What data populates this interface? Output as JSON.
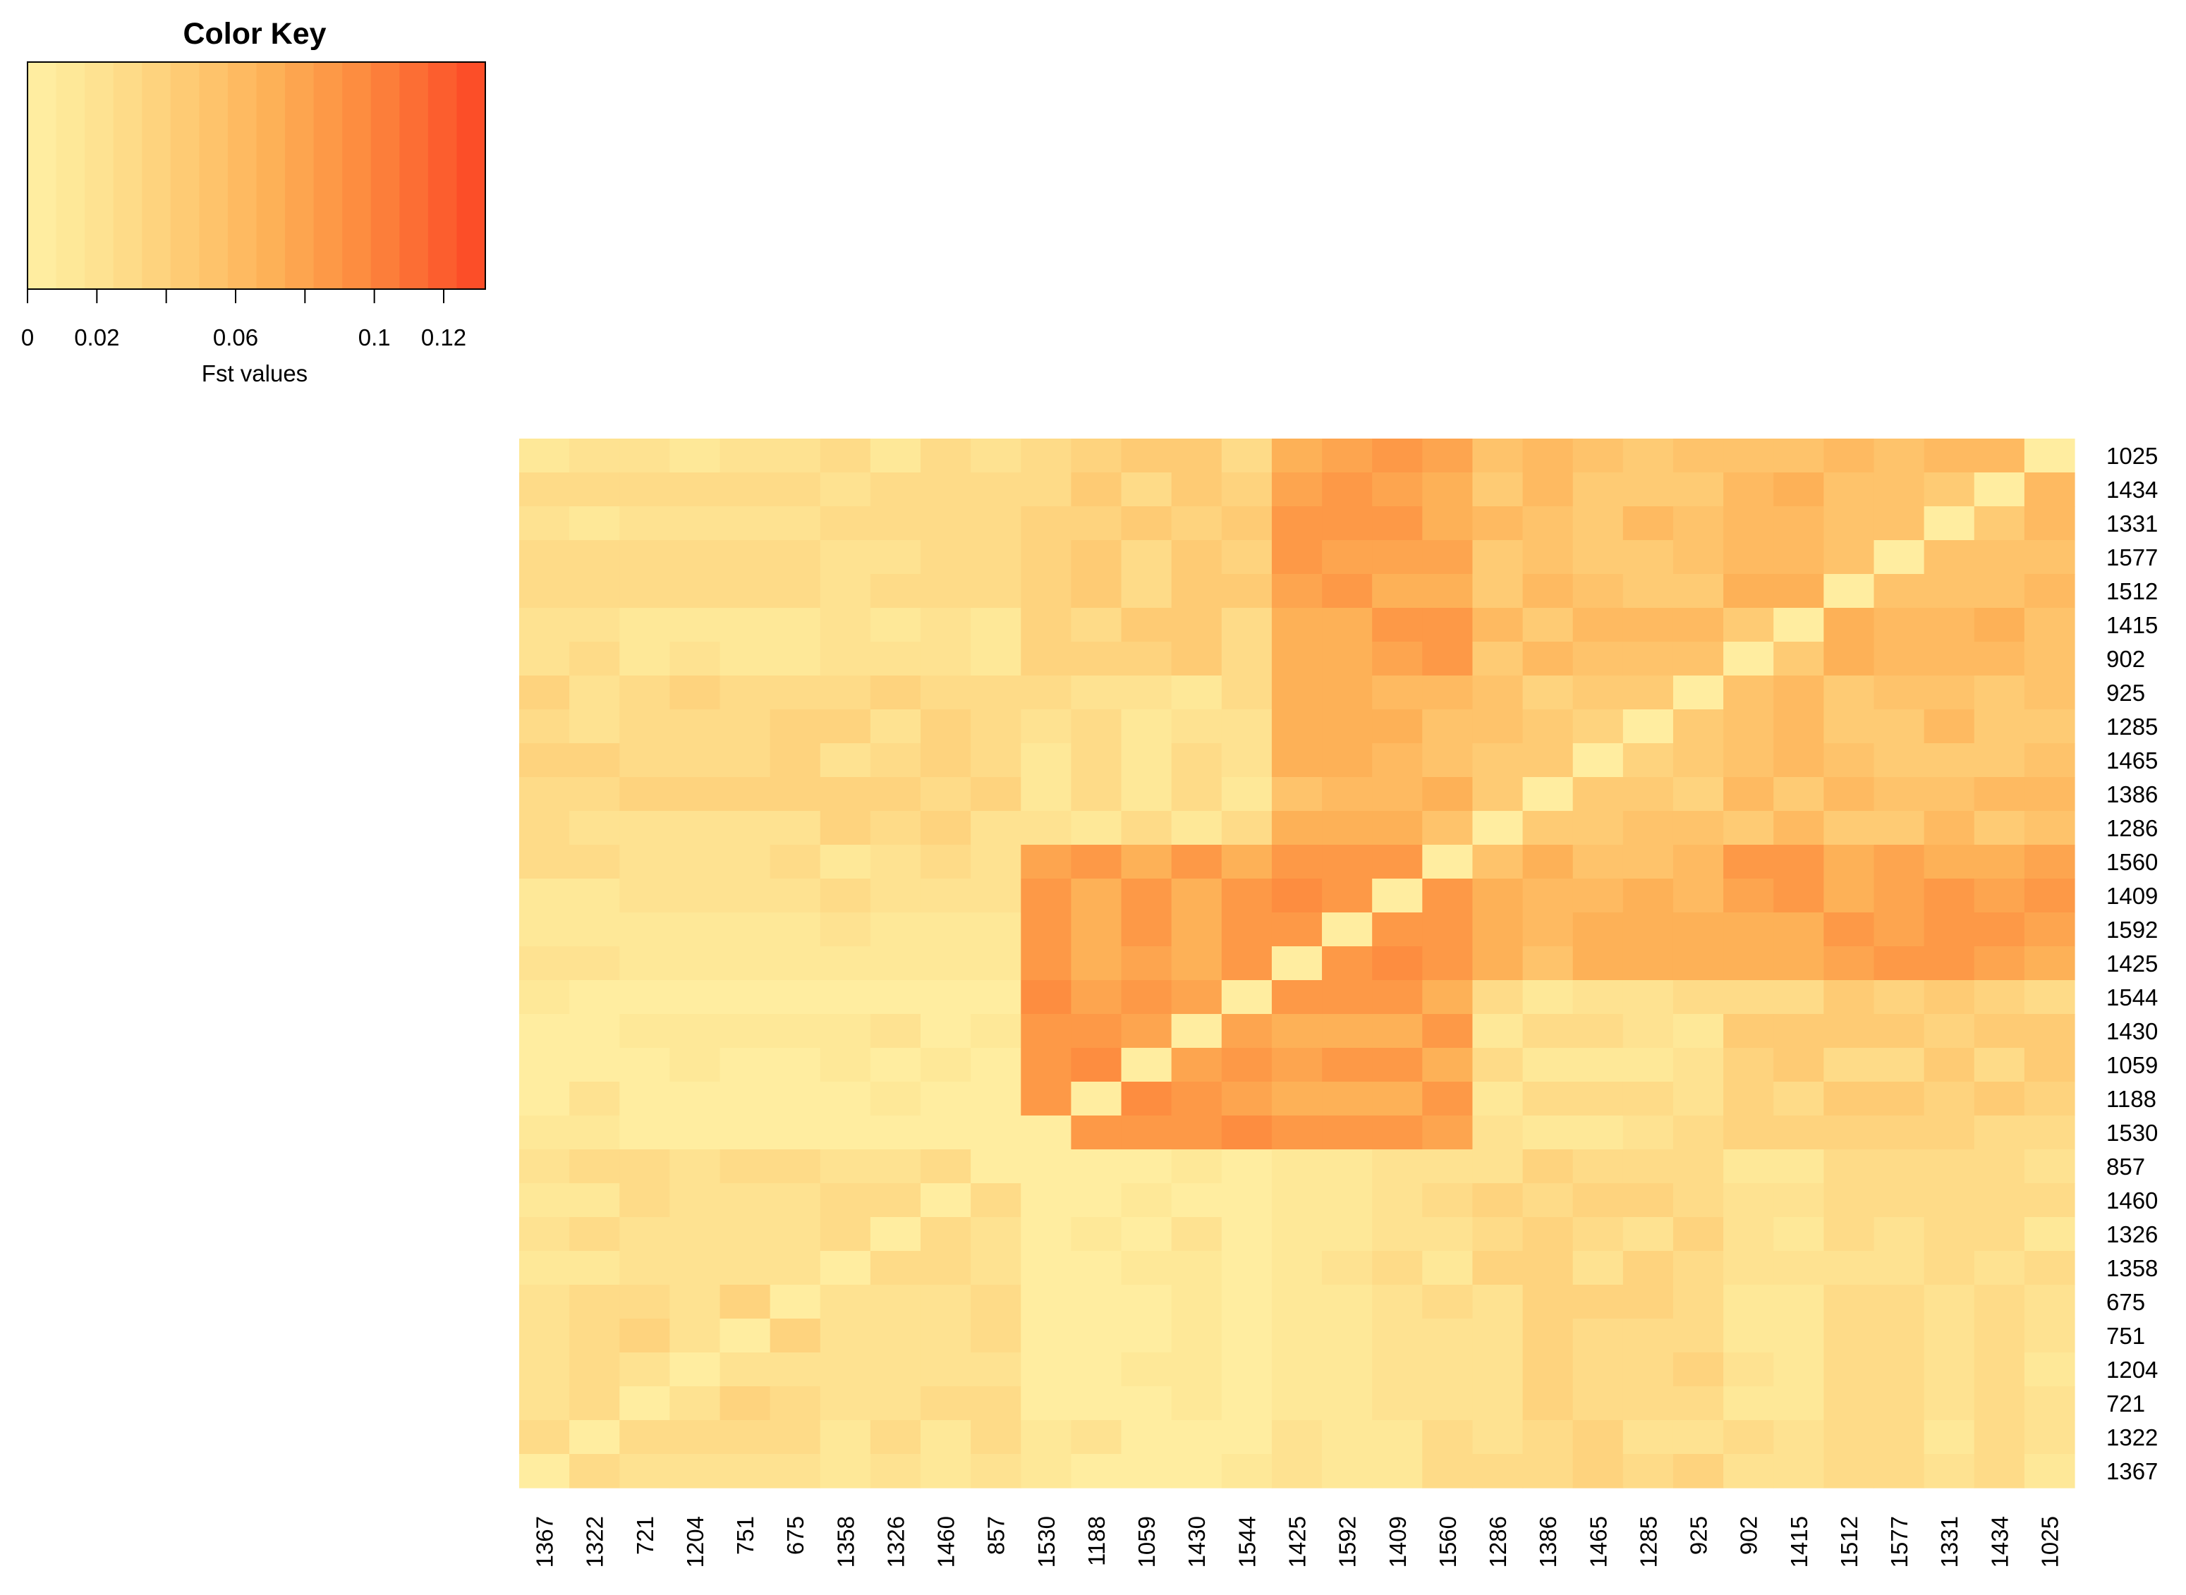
{
  "chart_data": {
    "type": "heatmap",
    "title": "",
    "color_key": {
      "title": "Color Key",
      "xlabel": "Fst values",
      "ticks": [
        "0",
        "0.02",
        "0.06",
        "0.1",
        "0.12"
      ],
      "tick_values": [
        0,
        0.02,
        0.06,
        0.1,
        0.12
      ],
      "range": [
        0,
        0.132
      ],
      "palette": [
        "#FFEDA0",
        "#FEE898",
        "#FEE291",
        "#FEDB88",
        "#FED37E",
        "#FECB74",
        "#FEC36B",
        "#FEBA61",
        "#FDB157",
        "#FDA54F",
        "#FD9947",
        "#FD8D40",
        "#FC7E3A",
        "#FC6E34",
        "#FC5E2E",
        "#FC4E28"
      ]
    },
    "row_labels": [
      "1025",
      "1434",
      "1331",
      "1577",
      "1512",
      "1415",
      "902",
      "925",
      "1285",
      "1465",
      "1386",
      "1286",
      "1560",
      "1409",
      "1592",
      "1425",
      "1544",
      "1430",
      "1059",
      "1188",
      "1530",
      "857",
      "1460",
      "1326",
      "1358",
      "675",
      "751",
      "1204",
      "721",
      "1322",
      "1367"
    ],
    "col_labels": [
      "1367",
      "1322",
      "721",
      "1204",
      "751",
      "675",
      "1358",
      "1326",
      "1460",
      "857",
      "1530",
      "1188",
      "1059",
      "1430",
      "1544",
      "1425",
      "1592",
      "1409",
      "1560",
      "1286",
      "1386",
      "1465",
      "1285",
      "925",
      "902",
      "1415",
      "1512",
      "1577",
      "1331",
      "1434",
      "1025"
    ],
    "groups": {
      "A": [
        "1367",
        "1322",
        "721",
        "1204",
        "751",
        "675",
        "1358",
        "1326",
        "1460",
        "857"
      ],
      "B": [
        "1530",
        "1188",
        "1059",
        "1430",
        "1544"
      ],
      "C": [
        "1425",
        "1592",
        "1409",
        "1560"
      ],
      "D": [
        "1286",
        "1386",
        "1465",
        "1285",
        "925"
      ],
      "E": [
        "902",
        "1415",
        "1512",
        "1577",
        "1331",
        "1434",
        "1025"
      ]
    },
    "group_mean_fst": {
      "A-A": 0.025,
      "A-B": 0.008,
      "A-C": 0.02,
      "A-D": 0.03,
      "A-E": 0.023,
      "B-B": 0.085,
      "B-C": 0.078,
      "B-D": 0.02,
      "B-E": 0.038,
      "C-C": 0.085,
      "C-D": 0.065,
      "C-E": 0.08,
      "D-D": 0.048,
      "D-E": 0.055,
      "E-E": 0.058
    },
    "values_note": "",
    "legend_position": "top-left"
  }
}
